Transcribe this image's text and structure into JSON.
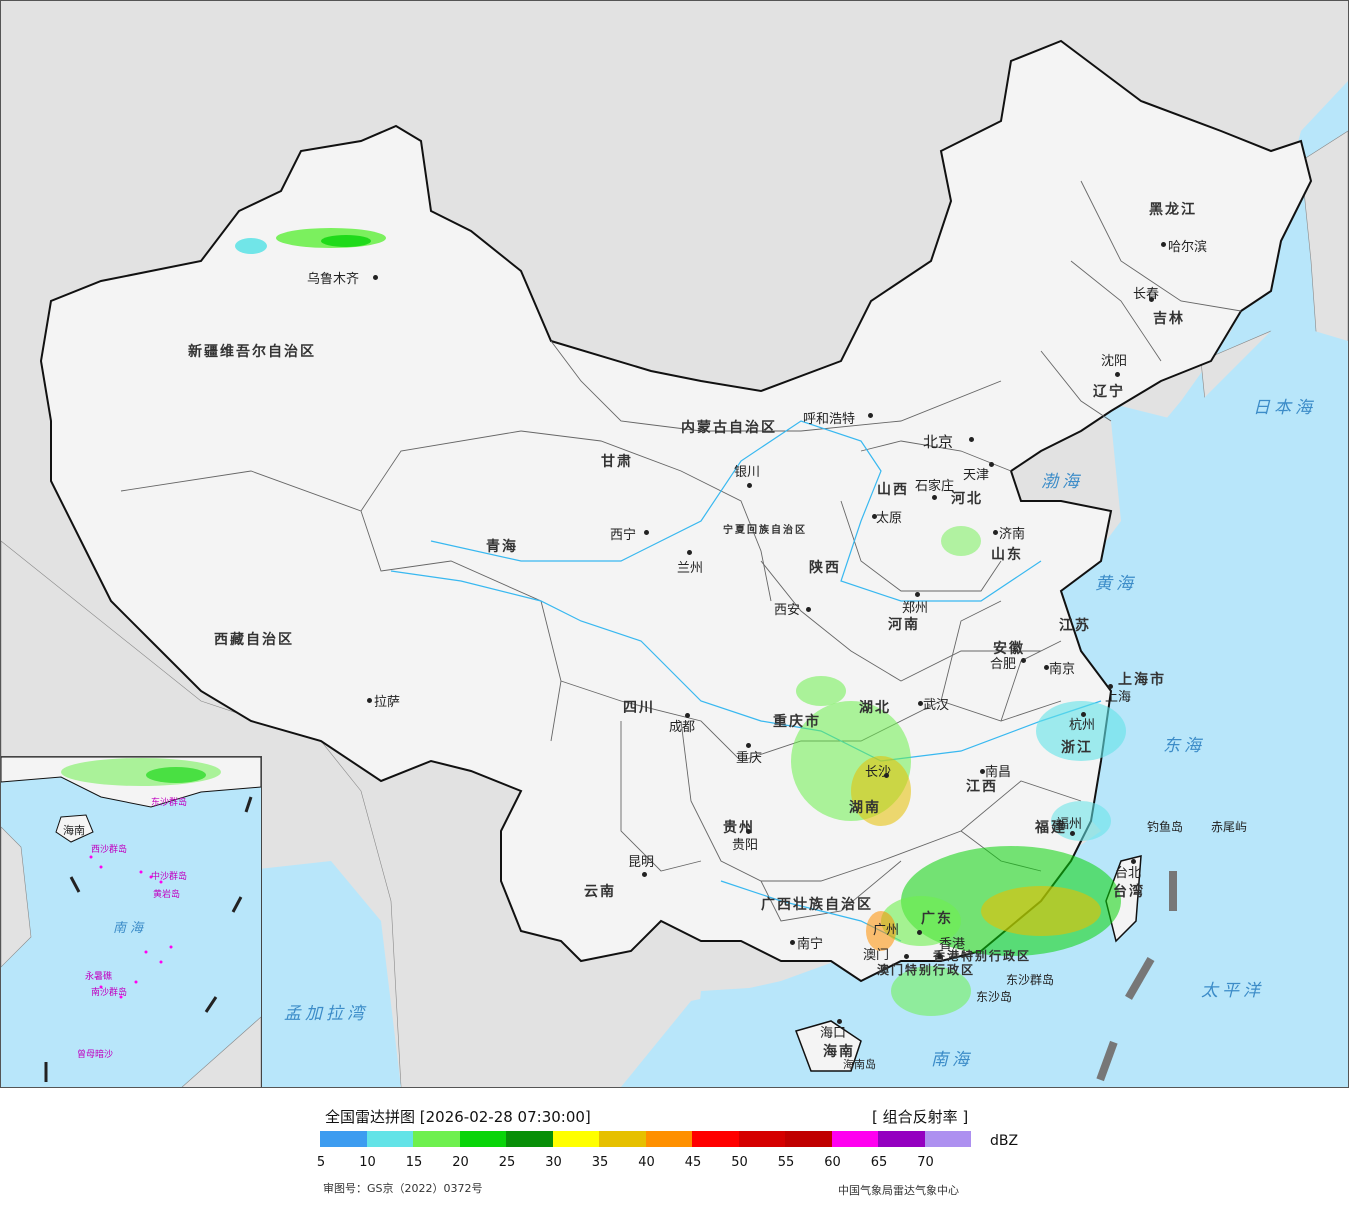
{
  "legend": {
    "title": "全国雷达拼图 [2026-02-28 07:30:00]",
    "product": "[ 组合反射率 ]",
    "unit": "dBZ",
    "ticks": [
      "5",
      "10",
      "15",
      "20",
      "25",
      "30",
      "35",
      "40",
      "45",
      "50",
      "55",
      "60",
      "65",
      "70"
    ],
    "colors": [
      "#3d9cf0",
      "#63e3e7",
      "#6ef04e",
      "#09d409",
      "#088f08",
      "#ffff00",
      "#e6c000",
      "#ff9000",
      "#ff0000",
      "#d50000",
      "#c00000",
      "#ff00f0",
      "#9400c0",
      "#ad90f0"
    ],
    "review_no": "审图号：GS京（2022）0372号",
    "credit": "中国气象局雷达气象中心"
  },
  "map": {
    "colors": {
      "ocean": "#b8e6fa",
      "land": "#f3f3f3",
      "foreign": "#e2e2e2",
      "border": "#111111",
      "rivers": "#38b8f0"
    },
    "provinces": [
      {
        "name": "新疆维吾尔自治区"
      },
      {
        "name": "西藏自治区"
      },
      {
        "name": "青海"
      },
      {
        "name": "甘肃"
      },
      {
        "name": "内蒙古自治区"
      },
      {
        "name": "黑龙江"
      },
      {
        "name": "吉林"
      },
      {
        "name": "辽宁"
      },
      {
        "name": "河北"
      },
      {
        "name": "山西"
      },
      {
        "name": "山东"
      },
      {
        "name": "河南"
      },
      {
        "name": "陕西"
      },
      {
        "name": "四川"
      },
      {
        "name": "云南"
      },
      {
        "name": "贵州"
      },
      {
        "name": "湖北"
      },
      {
        "name": "湖南"
      },
      {
        "name": "江西"
      },
      {
        "name": "安徽"
      },
      {
        "name": "江苏"
      },
      {
        "name": "浙江"
      },
      {
        "name": "福建"
      },
      {
        "name": "广东"
      },
      {
        "name": "广西壮族自治区"
      },
      {
        "name": "海南"
      },
      {
        "name": "台湾"
      },
      {
        "name": "重庆市"
      },
      {
        "name": "上海市"
      },
      {
        "name": "宁夏回族自治区"
      },
      {
        "name": "香港特别行政区"
      },
      {
        "name": "澳门特别行政区"
      }
    ],
    "cities": [
      {
        "name": "乌鲁木齐"
      },
      {
        "name": "拉萨"
      },
      {
        "name": "西宁"
      },
      {
        "name": "兰州"
      },
      {
        "name": "银川"
      },
      {
        "name": "呼和浩特"
      },
      {
        "name": "北京"
      },
      {
        "name": "天津"
      },
      {
        "name": "石家庄"
      },
      {
        "name": "太原"
      },
      {
        "name": "济南"
      },
      {
        "name": "郑州"
      },
      {
        "name": "西安"
      },
      {
        "name": "成都"
      },
      {
        "name": "重庆"
      },
      {
        "name": "昆明"
      },
      {
        "name": "贵阳"
      },
      {
        "name": "南宁"
      },
      {
        "name": "长沙"
      },
      {
        "name": "武汉"
      },
      {
        "name": "南昌"
      },
      {
        "name": "合肥"
      },
      {
        "name": "南京"
      },
      {
        "name": "上海"
      },
      {
        "name": "杭州"
      },
      {
        "name": "福州"
      },
      {
        "name": "台北"
      },
      {
        "name": "广州"
      },
      {
        "name": "澳门"
      },
      {
        "name": "香港"
      },
      {
        "name": "海口"
      },
      {
        "name": "哈尔滨"
      },
      {
        "name": "长春"
      },
      {
        "name": "沈阳"
      }
    ],
    "seas": [
      {
        "name": "日本海"
      },
      {
        "name": "渤海"
      },
      {
        "name": "黄海"
      },
      {
        "name": "东海"
      },
      {
        "name": "太平洋"
      },
      {
        "name": "南海"
      },
      {
        "name": "孟加拉湾"
      }
    ],
    "islands": [
      {
        "name": "钓鱼岛"
      },
      {
        "name": "赤尾屿"
      },
      {
        "name": "东沙群岛"
      },
      {
        "name": "东沙岛"
      },
      {
        "name": "海南岛"
      }
    ],
    "inset": {
      "labels": [
        "海南",
        "南海",
        "西沙群岛",
        "中沙群岛",
        "南沙群岛",
        "黄岩岛",
        "曾母暗沙",
        "永暑礁",
        "东沙群岛"
      ]
    }
  }
}
